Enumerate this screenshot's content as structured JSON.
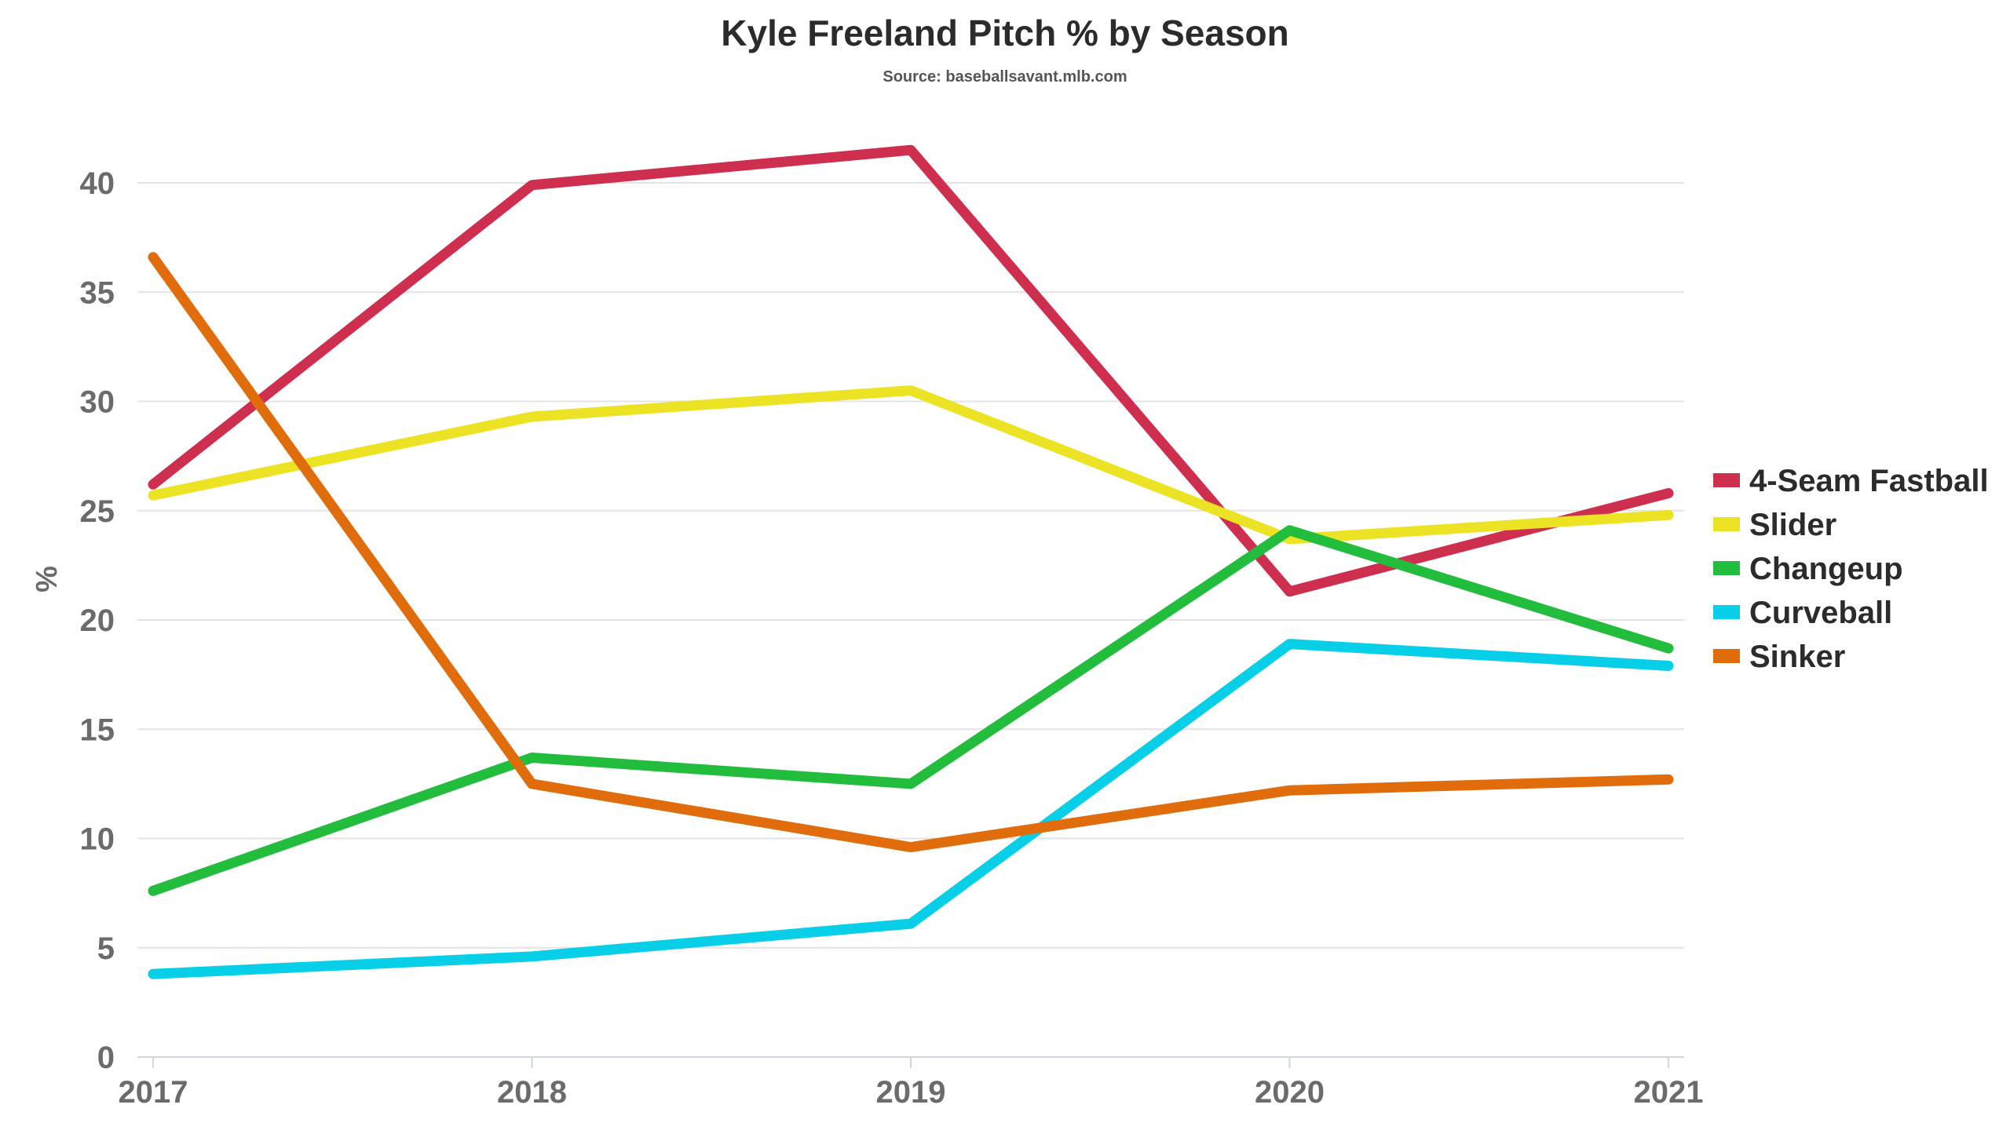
{
  "chart_data": {
    "type": "line",
    "title": "Kyle Freeland Pitch % by Season",
    "subtitle": "Source: baseballsavant.mlb.com",
    "xlabel": "",
    "ylabel": "%",
    "x": [
      "2017",
      "2018",
      "2019",
      "2020",
      "2021"
    ],
    "ylim": [
      0,
      42
    ],
    "yticks": [
      0,
      5,
      10,
      15,
      20,
      25,
      30,
      35,
      40
    ],
    "grid": true,
    "legend_position": "right",
    "series": [
      {
        "name": "4-Seam Fastball",
        "color": "#cf2f4f",
        "values": [
          26.2,
          39.9,
          41.5,
          21.3,
          25.8
        ]
      },
      {
        "name": "Slider",
        "color": "#ebe324",
        "values": [
          25.7,
          29.3,
          30.5,
          23.7,
          24.8
        ]
      },
      {
        "name": "Changeup",
        "color": "#22bd3c",
        "values": [
          7.6,
          13.7,
          12.5,
          24.1,
          18.7
        ]
      },
      {
        "name": "Curveball",
        "color": "#07cfe8",
        "values": [
          3.8,
          4.6,
          6.1,
          18.9,
          17.9
        ]
      },
      {
        "name": "Sinker",
        "color": "#e06c0c",
        "values": [
          36.6,
          12.5,
          9.6,
          12.2,
          12.7
        ]
      }
    ]
  }
}
